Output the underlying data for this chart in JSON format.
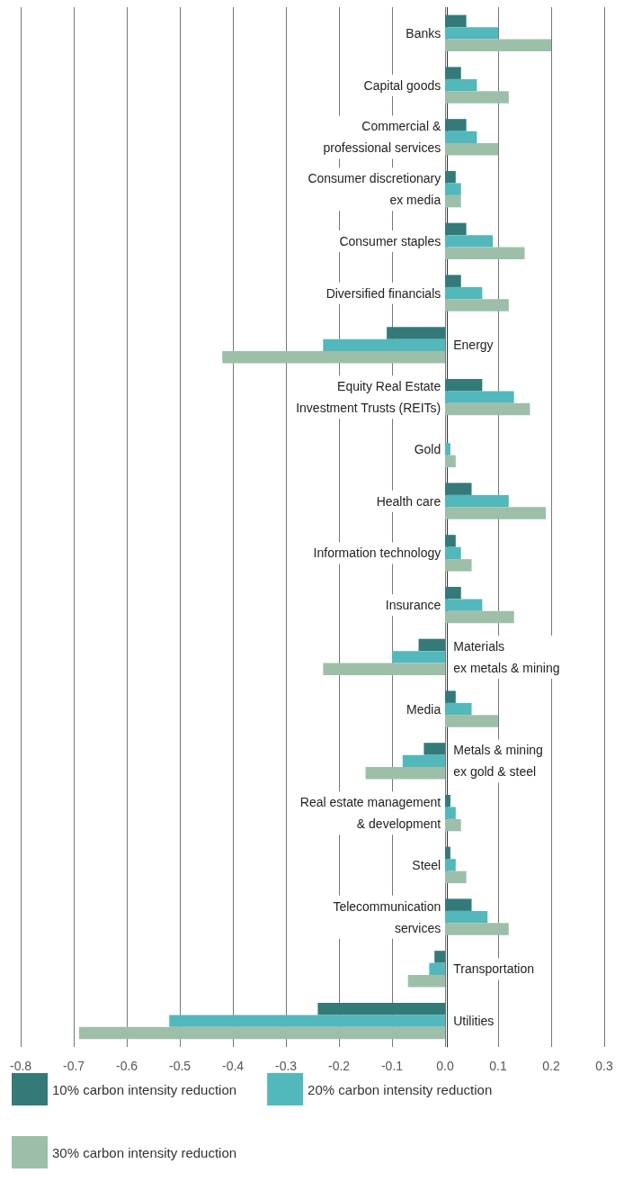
{
  "chart_data": {
    "type": "bar",
    "orientation": "horizontal",
    "categories": [
      "Banks",
      "Capital goods",
      "Commercial &\nprofessional services",
      "Consumer discretionary\nex media",
      "Consumer staples",
      "Diversified financials",
      "Energy",
      "Equity Real Estate\nInvestment Trusts (REITs)",
      "Gold",
      "Health care",
      "Information technology",
      "Insurance",
      "Materials\nex metals & mining",
      "Media",
      "Metals & mining\nex gold & steel",
      "Real estate management\n& development",
      "Steel",
      "Telecommunication\nservices",
      "Transportation",
      "Utilities"
    ],
    "series": [
      {
        "name": "10% carbon intensity reduction",
        "color": "#337a78",
        "values": [
          0.04,
          0.03,
          0.04,
          0.02,
          0.04,
          0.03,
          -0.11,
          0.07,
          0,
          0.05,
          0.02,
          0.03,
          -0.05,
          0.02,
          -0.04,
          0.01,
          0.01,
          0.05,
          -0.02,
          -0.24
        ]
      },
      {
        "name": "20% carbon intensity reduction",
        "color": "#52b8bb",
        "values": [
          0.1,
          0.06,
          0.06,
          0.03,
          0.09,
          0.07,
          -0.23,
          0.13,
          0.01,
          0.12,
          0.03,
          0.07,
          -0.1,
          0.05,
          -0.08,
          0.02,
          0.02,
          0.08,
          -0.03,
          -0.52
        ]
      },
      {
        "name": "30% carbon intensity reduction",
        "color": "#9dbfa9",
        "values": [
          0.2,
          0.12,
          0.1,
          0.03,
          0.15,
          0.12,
          -0.42,
          0.16,
          0.02,
          0.19,
          0.05,
          0.13,
          -0.23,
          0.1,
          -0.15,
          0.03,
          0.04,
          0.12,
          -0.07,
          -0.69
        ]
      }
    ],
    "xlim": [
      -0.8,
      0.3
    ],
    "xticks": [
      -0.8,
      -0.7,
      -0.6,
      -0.5,
      -0.4,
      -0.3,
      -0.2,
      -0.1,
      {
        "value": 0,
        "label": "0.0"
      },
      0.1,
      0.2,
      0.3
    ],
    "grid": "x",
    "legend": "bottom"
  }
}
